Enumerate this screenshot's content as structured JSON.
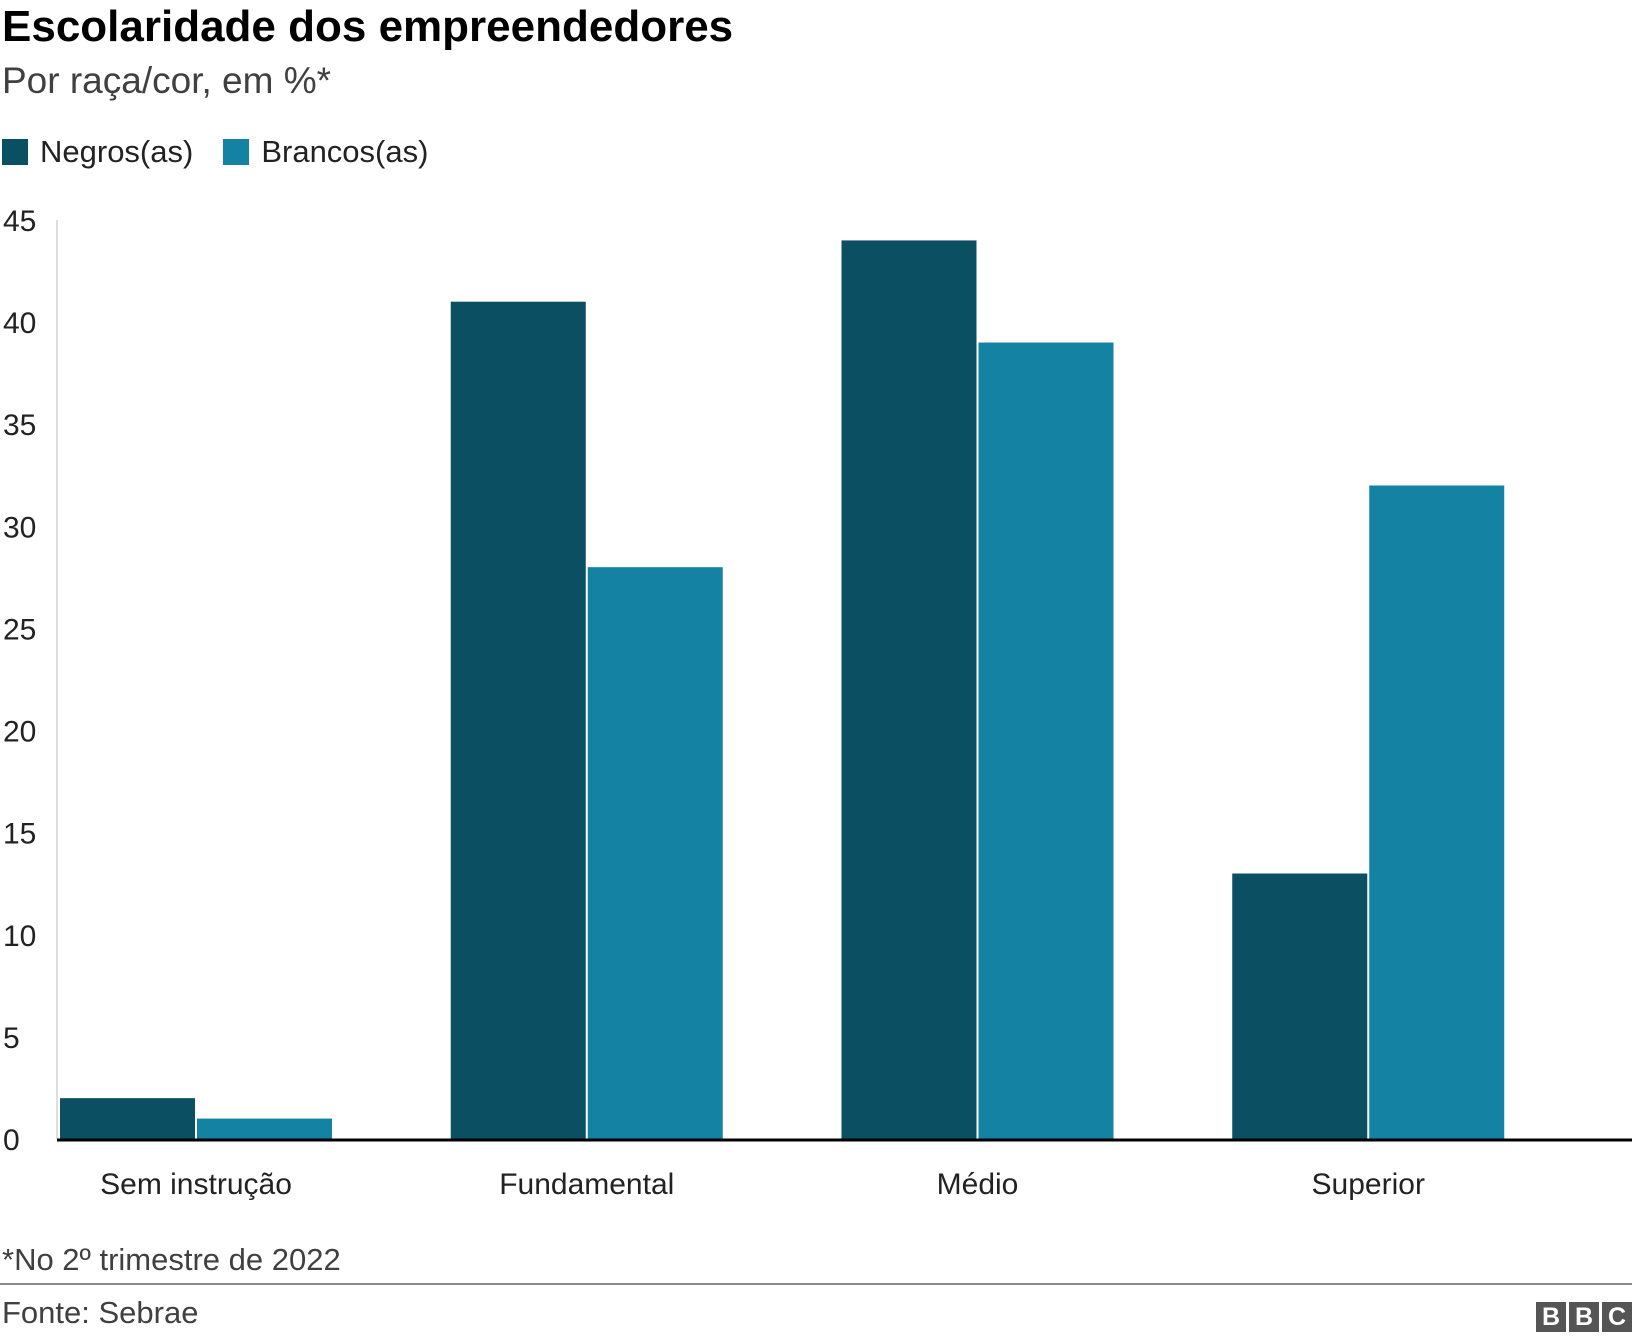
{
  "title": "Escolaridade dos empreendedores",
  "subtitle": "Por raça/cor, em %*",
  "note": "*No 2º trimestre de 2022",
  "source": "Fonte: Sebrae",
  "logo": [
    "B",
    "B",
    "C"
  ],
  "colors": {
    "negros": "#0b4f62",
    "brancos": "#1482a3",
    "axis": "#000000"
  },
  "chart_data": {
    "type": "bar",
    "title": "Escolaridade dos empreendedores",
    "subtitle": "Por raça/cor, em %*",
    "categories": [
      "Sem instrução",
      "Fundamental",
      "Médio",
      "Superior"
    ],
    "series": [
      {
        "name": "Negros(as)",
        "color": "#0b4f62",
        "values": [
          2,
          41,
          44,
          13
        ]
      },
      {
        "name": "Brancos(as)",
        "color": "#1482a3",
        "values": [
          1,
          28,
          39,
          32
        ]
      }
    ],
    "ylim": [
      0,
      45
    ],
    "yticks": [
      0,
      5,
      10,
      15,
      20,
      25,
      30,
      35,
      40,
      45
    ],
    "xlabel": "",
    "ylabel": "",
    "grid": false,
    "legend_position": "top-left"
  }
}
